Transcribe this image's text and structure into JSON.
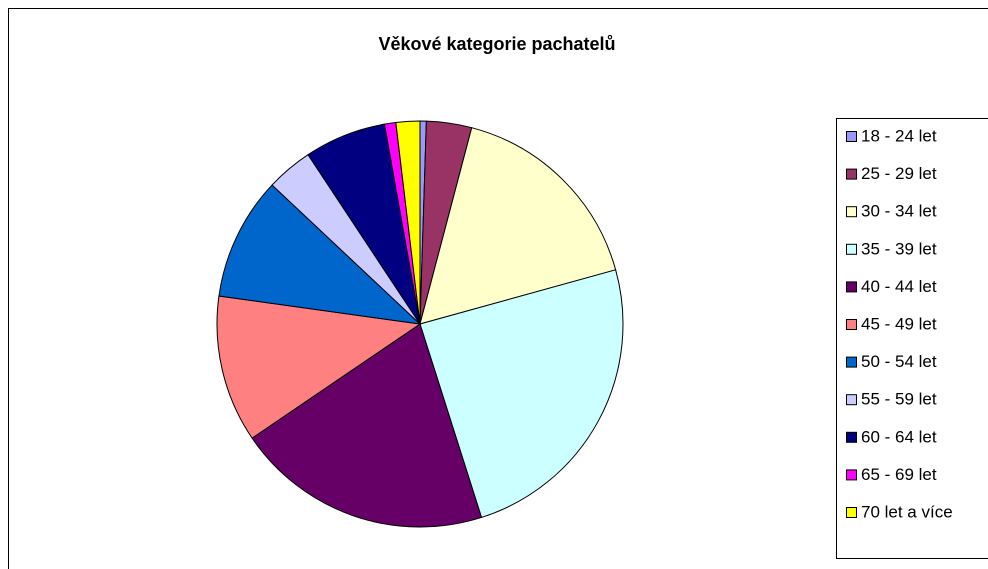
{
  "chart_data": {
    "type": "pie",
    "title": "Věkové kategorie pachatelů",
    "categories": [
      "18 - 24 let",
      "25 - 29 let",
      "30 - 34 let",
      "35 - 39 let",
      "40 - 44 let",
      "45 - 49 let",
      "50 - 54 let",
      "55 - 59 let",
      "60 - 64 let",
      "65 - 69 let",
      "70 let a více"
    ],
    "values": [
      0.5,
      3.6,
      16.6,
      24.4,
      20.4,
      11.7,
      9.8,
      3.7,
      6.5,
      0.9,
      1.9
    ],
    "colors": [
      "#9999ff",
      "#993366",
      "#ffffcc",
      "#ccffff",
      "#660066",
      "#ff8080",
      "#0066cc",
      "#ccccff",
      "#000080",
      "#ff00ff",
      "#ffff00"
    ],
    "legend": "right"
  }
}
